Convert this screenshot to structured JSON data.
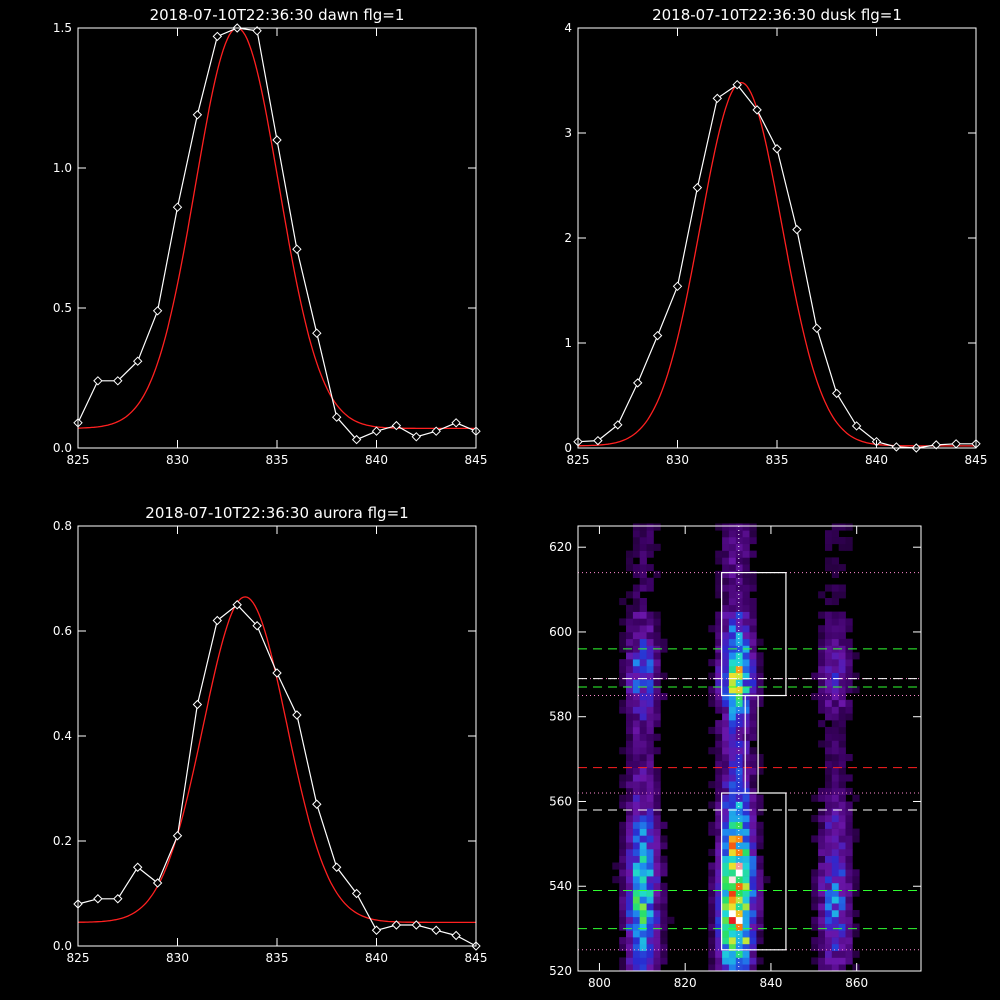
{
  "chart_data": [
    {
      "type": "line",
      "title": "2018-07-10T22:36:30 dawn flg=1",
      "xlim": [
        825,
        845
      ],
      "ylim": [
        0,
        1.5
      ],
      "xticks": [
        825,
        830,
        835,
        840,
        845
      ],
      "yticks": [
        0.0,
        0.5,
        1.0,
        1.5
      ],
      "xtick_labels": [
        "825",
        "830",
        "835",
        "840",
        "845"
      ],
      "ytick_labels": [
        "0.0",
        "0.5",
        "1.0",
        "1.5"
      ],
      "series": [
        {
          "style": "observed",
          "color": "#ffffff",
          "marker": "diamond",
          "x": [
            825,
            826,
            827,
            828,
            829,
            830,
            831,
            832,
            833,
            834,
            835,
            836,
            837,
            838,
            839,
            840,
            841,
            842,
            843,
            844,
            845
          ],
          "y": [
            0.09,
            0.24,
            0.24,
            0.31,
            0.49,
            0.86,
            1.19,
            1.47,
            1.5,
            1.49,
            1.1,
            0.71,
            0.41,
            0.11,
            0.03,
            0.06,
            0.08,
            0.04,
            0.06,
            0.09,
            0.06
          ]
        },
        {
          "style": "fit",
          "color": "#ff2020",
          "model": {
            "amplitude": 1.43,
            "center": 833.0,
            "sigma": 2.1,
            "baseline": 0.07
          }
        }
      ]
    },
    {
      "type": "line",
      "title": "2018-07-10T22:36:30 dusk flg=1",
      "xlim": [
        825,
        845
      ],
      "ylim": [
        0,
        4
      ],
      "xticks": [
        825,
        830,
        835,
        840,
        845
      ],
      "yticks": [
        0,
        1,
        2,
        3,
        4
      ],
      "xtick_labels": [
        "825",
        "830",
        "835",
        "840",
        "845"
      ],
      "ytick_labels": [
        "0",
        "1",
        "2",
        "3",
        "4"
      ],
      "series": [
        {
          "style": "observed",
          "color": "#ffffff",
          "marker": "diamond",
          "x": [
            825,
            826,
            827,
            828,
            829,
            830,
            831,
            832,
            833,
            834,
            835,
            836,
            837,
            838,
            839,
            840,
            841,
            842,
            843,
            844,
            845
          ],
          "y": [
            0.06,
            0.07,
            0.22,
            0.62,
            1.07,
            1.54,
            2.48,
            3.33,
            3.46,
            3.22,
            2.85,
            2.08,
            1.14,
            0.52,
            0.21,
            0.06,
            0.01,
            0.0,
            0.03,
            0.04,
            0.04
          ]
        },
        {
          "style": "fit",
          "color": "#ff2020",
          "model": {
            "amplitude": 3.46,
            "center": 833.2,
            "sigma": 2.05,
            "baseline": 0.02
          }
        }
      ]
    },
    {
      "type": "line",
      "title": "2018-07-10T22:36:30 aurora flg=1",
      "xlim": [
        825,
        845
      ],
      "ylim": [
        0,
        0.8
      ],
      "xticks": [
        825,
        830,
        835,
        840,
        845
      ],
      "yticks": [
        0.0,
        0.2,
        0.4,
        0.6,
        0.8
      ],
      "xtick_labels": [
        "825",
        "830",
        "835",
        "840",
        "845"
      ],
      "ytick_labels": [
        "0.0",
        "0.2",
        "0.4",
        "0.6",
        "0.8"
      ],
      "series": [
        {
          "style": "observed",
          "color": "#ffffff",
          "marker": "diamond",
          "x": [
            825,
            826,
            827,
            828,
            829,
            830,
            831,
            832,
            833,
            834,
            835,
            836,
            837,
            838,
            839,
            840,
            841,
            842,
            843,
            844,
            845
          ],
          "y": [
            0.08,
            0.09,
            0.09,
            0.15,
            0.12,
            0.21,
            0.46,
            0.62,
            0.65,
            0.61,
            0.52,
            0.44,
            0.27,
            0.15,
            0.1,
            0.03,
            0.04,
            0.04,
            0.03,
            0.02,
            0.0
          ]
        },
        {
          "style": "fit",
          "color": "#ff2020",
          "model": {
            "amplitude": 0.62,
            "center": 833.4,
            "sigma": 2.1,
            "baseline": 0.045
          }
        }
      ]
    },
    {
      "type": "heatmap",
      "title": "",
      "xlim": [
        795,
        875
      ],
      "ylim": [
        520,
        625
      ],
      "xticks": [
        800,
        820,
        840,
        860
      ],
      "yticks": [
        520,
        540,
        560,
        580,
        600,
        620
      ],
      "xtick_labels": [
        "800",
        "820",
        "840",
        "860"
      ],
      "ytick_labels": [
        "520",
        "540",
        "560",
        "580",
        "600",
        "620"
      ],
      "colormap": [
        "#000000",
        "#3a0062",
        "#6a15a8",
        "#2a2ad0",
        "#1e8ef0",
        "#20d8d8",
        "#2ae05a",
        "#e8e830",
        "#ff8a10",
        "#e81010",
        "#ffffff"
      ],
      "emission_bands": [
        {
          "center": 810,
          "strength": 0.55
        },
        {
          "center": 832,
          "strength": 1.0
        },
        {
          "center": 855,
          "strength": 0.35
        }
      ],
      "dotted_hlines": {
        "color": "#ff8ad0",
        "values": [
          525,
          562,
          585,
          589,
          614
        ]
      },
      "dashed_hlines": [
        {
          "color": "#30ff30",
          "value": 530
        },
        {
          "color": "#30ff30",
          "value": 539
        },
        {
          "color": "#ffffff",
          "value": 558
        },
        {
          "color": "#ff2020",
          "value": 568
        },
        {
          "color": "#30ff30",
          "value": 587
        },
        {
          "color": "#ffffff",
          "value": 589
        },
        {
          "color": "#30ff30",
          "value": 596
        }
      ],
      "dotted_vline": {
        "color": "#ffffff",
        "value": 832.5
      },
      "boxes": [
        {
          "color": "#ffffff",
          "x": [
            828.5,
            843.5
          ],
          "y": [
            525,
            562
          ]
        },
        {
          "color": "#ffffff",
          "x": [
            828.5,
            843.5
          ],
          "y": [
            585,
            614
          ]
        },
        {
          "color": "#ffffff",
          "x": [
            834,
            837
          ],
          "y": [
            562,
            585
          ]
        }
      ]
    }
  ]
}
